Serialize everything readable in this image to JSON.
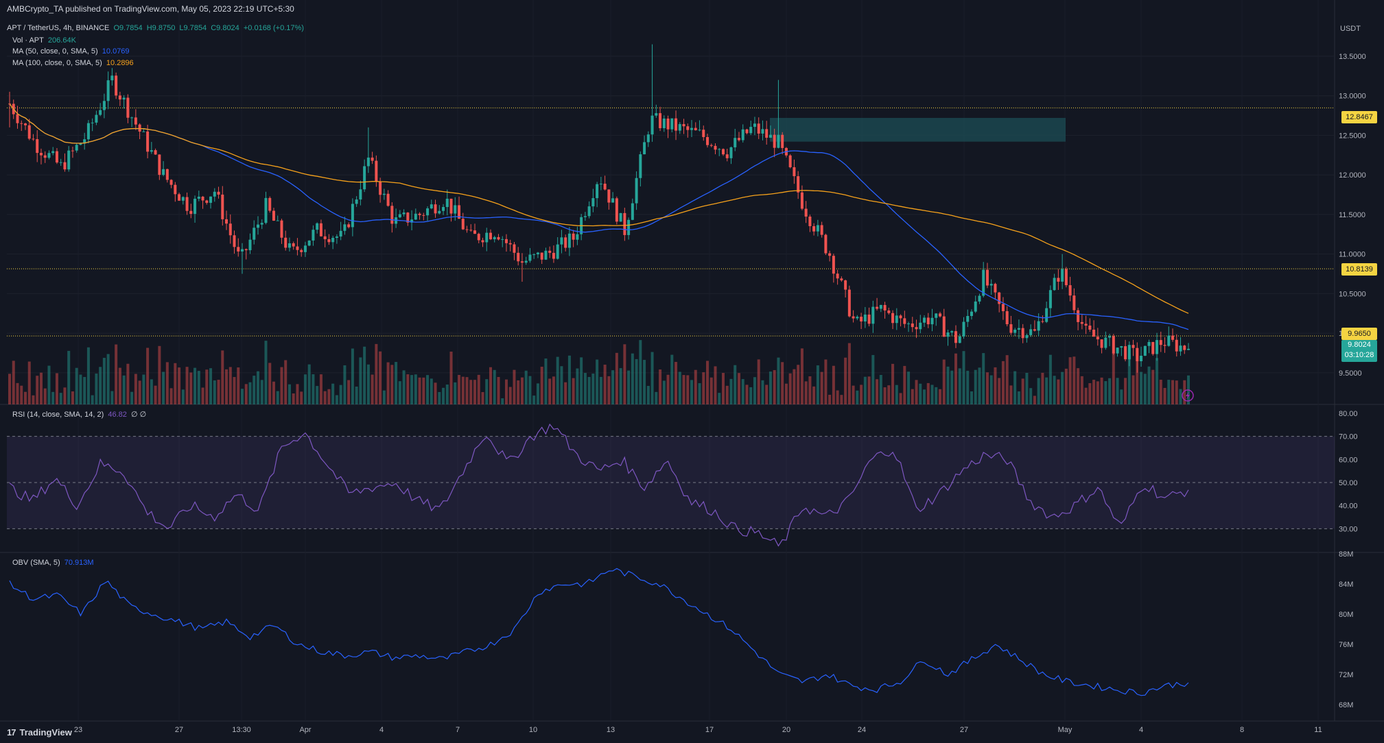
{
  "header": {
    "author": "AMBCrypto_TA",
    "published_text": "published on TradingView.com, May 05, 2023 22:19 UTC+5:30"
  },
  "legend": {
    "symbol": "APT / TetherUS, 4h, BINANCE",
    "ohlc": {
      "o": "O9.7854",
      "h": "H9.8750",
      "l": "L9.7854",
      "c": "C9.8024",
      "change": "+0.0168 (+0.17%)"
    },
    "vol": {
      "label": "Vol · APT",
      "value": "206.64K"
    },
    "ma50": {
      "label": "MA (50, close, 0, SMA, 5)",
      "value": "10.0769"
    },
    "ma100": {
      "label": "MA (100, close, 0, SMA, 5)",
      "value": "10.2896"
    },
    "rsi": {
      "label": "RSI (14, close, SMA, 14, 2)",
      "value": "46.82",
      "extra": "∅ ∅"
    },
    "obv": {
      "label": "OBV (SMA, 5)",
      "value": "70.913M"
    }
  },
  "colors": {
    "background": "#131722",
    "up": "#26a69a",
    "down": "#ef5350",
    "ma50": "#2962ff",
    "ma100": "#f7a21b",
    "rsi": "#7e57c2",
    "obv": "#2962ff",
    "level": "#f5d442",
    "zone": "#1c4a52"
  },
  "price_axis": {
    "currency": "USDT",
    "ticks": [
      "13.5000",
      "13.0000",
      "12.5000",
      "12.0000",
      "11.5000",
      "11.0000",
      "10.5000",
      "10.0000",
      "9.5000"
    ]
  },
  "price_tags": {
    "level1": "12.8467",
    "level2": "10.8139",
    "level3": "9.9650",
    "last_price": "9.8024",
    "countdown": "03:10:28"
  },
  "rsi_axis": {
    "ticks": [
      "80.00",
      "70.00",
      "60.00",
      "50.00",
      "40.00",
      "30.00"
    ]
  },
  "obv_axis": {
    "ticks": [
      "88M",
      "84M",
      "80M",
      "76M",
      "72M",
      "68M"
    ]
  },
  "time_axis": [
    "23",
    "27",
    "13:30",
    "Apr",
    "4",
    "7",
    "10",
    "13",
    "17",
    "20",
    "24",
    "27",
    "May",
    "4",
    "8",
    "11"
  ],
  "footer": {
    "brand": "TradingView"
  },
  "chart_data": {
    "type": "candlestick",
    "symbol": "APT / TetherUS",
    "interval": "4h",
    "price_range": [
      9.1,
      13.95
    ],
    "horizontal_levels": [
      12.8467,
      10.8139,
      9.965
    ],
    "supply_zone": {
      "from_date": "Apr 19",
      "to_date": "Apr 30",
      "price_low": 12.42,
      "price_high": 12.72
    },
    "price_keypoints": [
      {
        "t": "Mar 20",
        "close": 12.9,
        "high": 13.05,
        "low": 12.6
      },
      {
        "t": "Mar 21",
        "close": 12.4
      },
      {
        "t": "Mar 22",
        "close": 12.1
      },
      {
        "t": "Mar 23",
        "close": 12.5
      },
      {
        "t": "Mar 24",
        "close": 13.2,
        "high": 13.35
      },
      {
        "t": "Mar 25",
        "close": 12.6
      },
      {
        "t": "Mar 26",
        "close": 12.0
      },
      {
        "t": "Mar 27",
        "close": 11.6
      },
      {
        "t": "Mar 28",
        "close": 11.8
      },
      {
        "t": "Mar 29",
        "close": 10.9,
        "low": 10.75
      },
      {
        "t": "Mar 30",
        "close": 11.6
      },
      {
        "t": "Mar 31",
        "close": 11.0
      },
      {
        "t": "Apr 1",
        "close": 11.3
      },
      {
        "t": "Apr 2",
        "close": 11.2
      },
      {
        "t": "Apr 3",
        "close": 12.2,
        "high": 12.6
      },
      {
        "t": "Apr 4",
        "close": 11.4
      },
      {
        "t": "Apr 5",
        "close": 11.5
      },
      {
        "t": "Apr 6",
        "close": 11.7
      },
      {
        "t": "Apr 7",
        "close": 11.2
      },
      {
        "t": "Apr 8",
        "close": 11.3
      },
      {
        "t": "Apr 9",
        "close": 10.9,
        "low": 10.65
      },
      {
        "t": "Apr 10",
        "close": 11.0
      },
      {
        "t": "Apr 11",
        "close": 11.2
      },
      {
        "t": "Apr 12",
        "close": 12.0
      },
      {
        "t": "Apr 13",
        "close": 11.3
      },
      {
        "t": "Apr 14",
        "close": 12.7,
        "high": 13.65
      },
      {
        "t": "Apr 15",
        "close": 12.6
      },
      {
        "t": "Apr 16",
        "close": 12.5
      },
      {
        "t": "Apr 17",
        "close": 12.3
      },
      {
        "t": "Apr 18",
        "close": 12.6
      },
      {
        "t": "Apr 19",
        "close": 12.4,
        "high": 13.2
      },
      {
        "t": "Apr 20",
        "close": 11.6
      },
      {
        "t": "Apr 21",
        "close": 11.0
      },
      {
        "t": "Apr 22",
        "close": 10.1
      },
      {
        "t": "Apr 23",
        "close": 10.3
      },
      {
        "t": "Apr 24",
        "close": 10.1
      },
      {
        "t": "Apr 25",
        "close": 10.2
      },
      {
        "t": "Apr 26",
        "close": 9.9
      },
      {
        "t": "Apr 27",
        "close": 10.7,
        "high": 10.9
      },
      {
        "t": "Apr 28",
        "close": 10.1
      },
      {
        "t": "Apr 29",
        "close": 10.0
      },
      {
        "t": "Apr 30",
        "close": 10.8,
        "high": 11.0
      },
      {
        "t": "May 1",
        "close": 10.0
      },
      {
        "t": "May 2",
        "close": 9.85
      },
      {
        "t": "May 3",
        "close": 9.7,
        "low": 9.5
      },
      {
        "t": "May 4",
        "close": 9.9
      },
      {
        "t": "May 5",
        "close": 9.8024
      }
    ],
    "ma50_last": 10.0769,
    "ma100_last": 10.2896,
    "rsi": {
      "range": [
        20,
        80
      ],
      "band": [
        30,
        70
      ],
      "last": 46.82,
      "keypoints": [
        48,
        42,
        52,
        40,
        58,
        55,
        38,
        30,
        40,
        35,
        45,
        38,
        65,
        72,
        58,
        45,
        48,
        50,
        42,
        38,
        55,
        72,
        58,
        70,
        75,
        62,
        55,
        60,
        48,
        60,
        42,
        38,
        30,
        28,
        22,
        40,
        35,
        42,
        60,
        65,
        38,
        45,
        55,
        62,
        60,
        42,
        35,
        40,
        48,
        30,
        50,
        43,
        47
      ]
    },
    "obv": {
      "range": [
        66,
        88
      ],
      "unit": "M",
      "last": 70.913,
      "keypoints": [
        84,
        82,
        82.5,
        80,
        84.5,
        81,
        80,
        79,
        78,
        79,
        77,
        78.5,
        76,
        75,
        74.5,
        75,
        74.2,
        74.5,
        74,
        75,
        76,
        78,
        83,
        84,
        84,
        86,
        85,
        84,
        82,
        80,
        78,
        75,
        72,
        71,
        72,
        70.5,
        70,
        71,
        74,
        72,
        74,
        76,
        74,
        72,
        71,
        70.5,
        70,
        69.5,
        70.5,
        70.913
      ]
    }
  }
}
